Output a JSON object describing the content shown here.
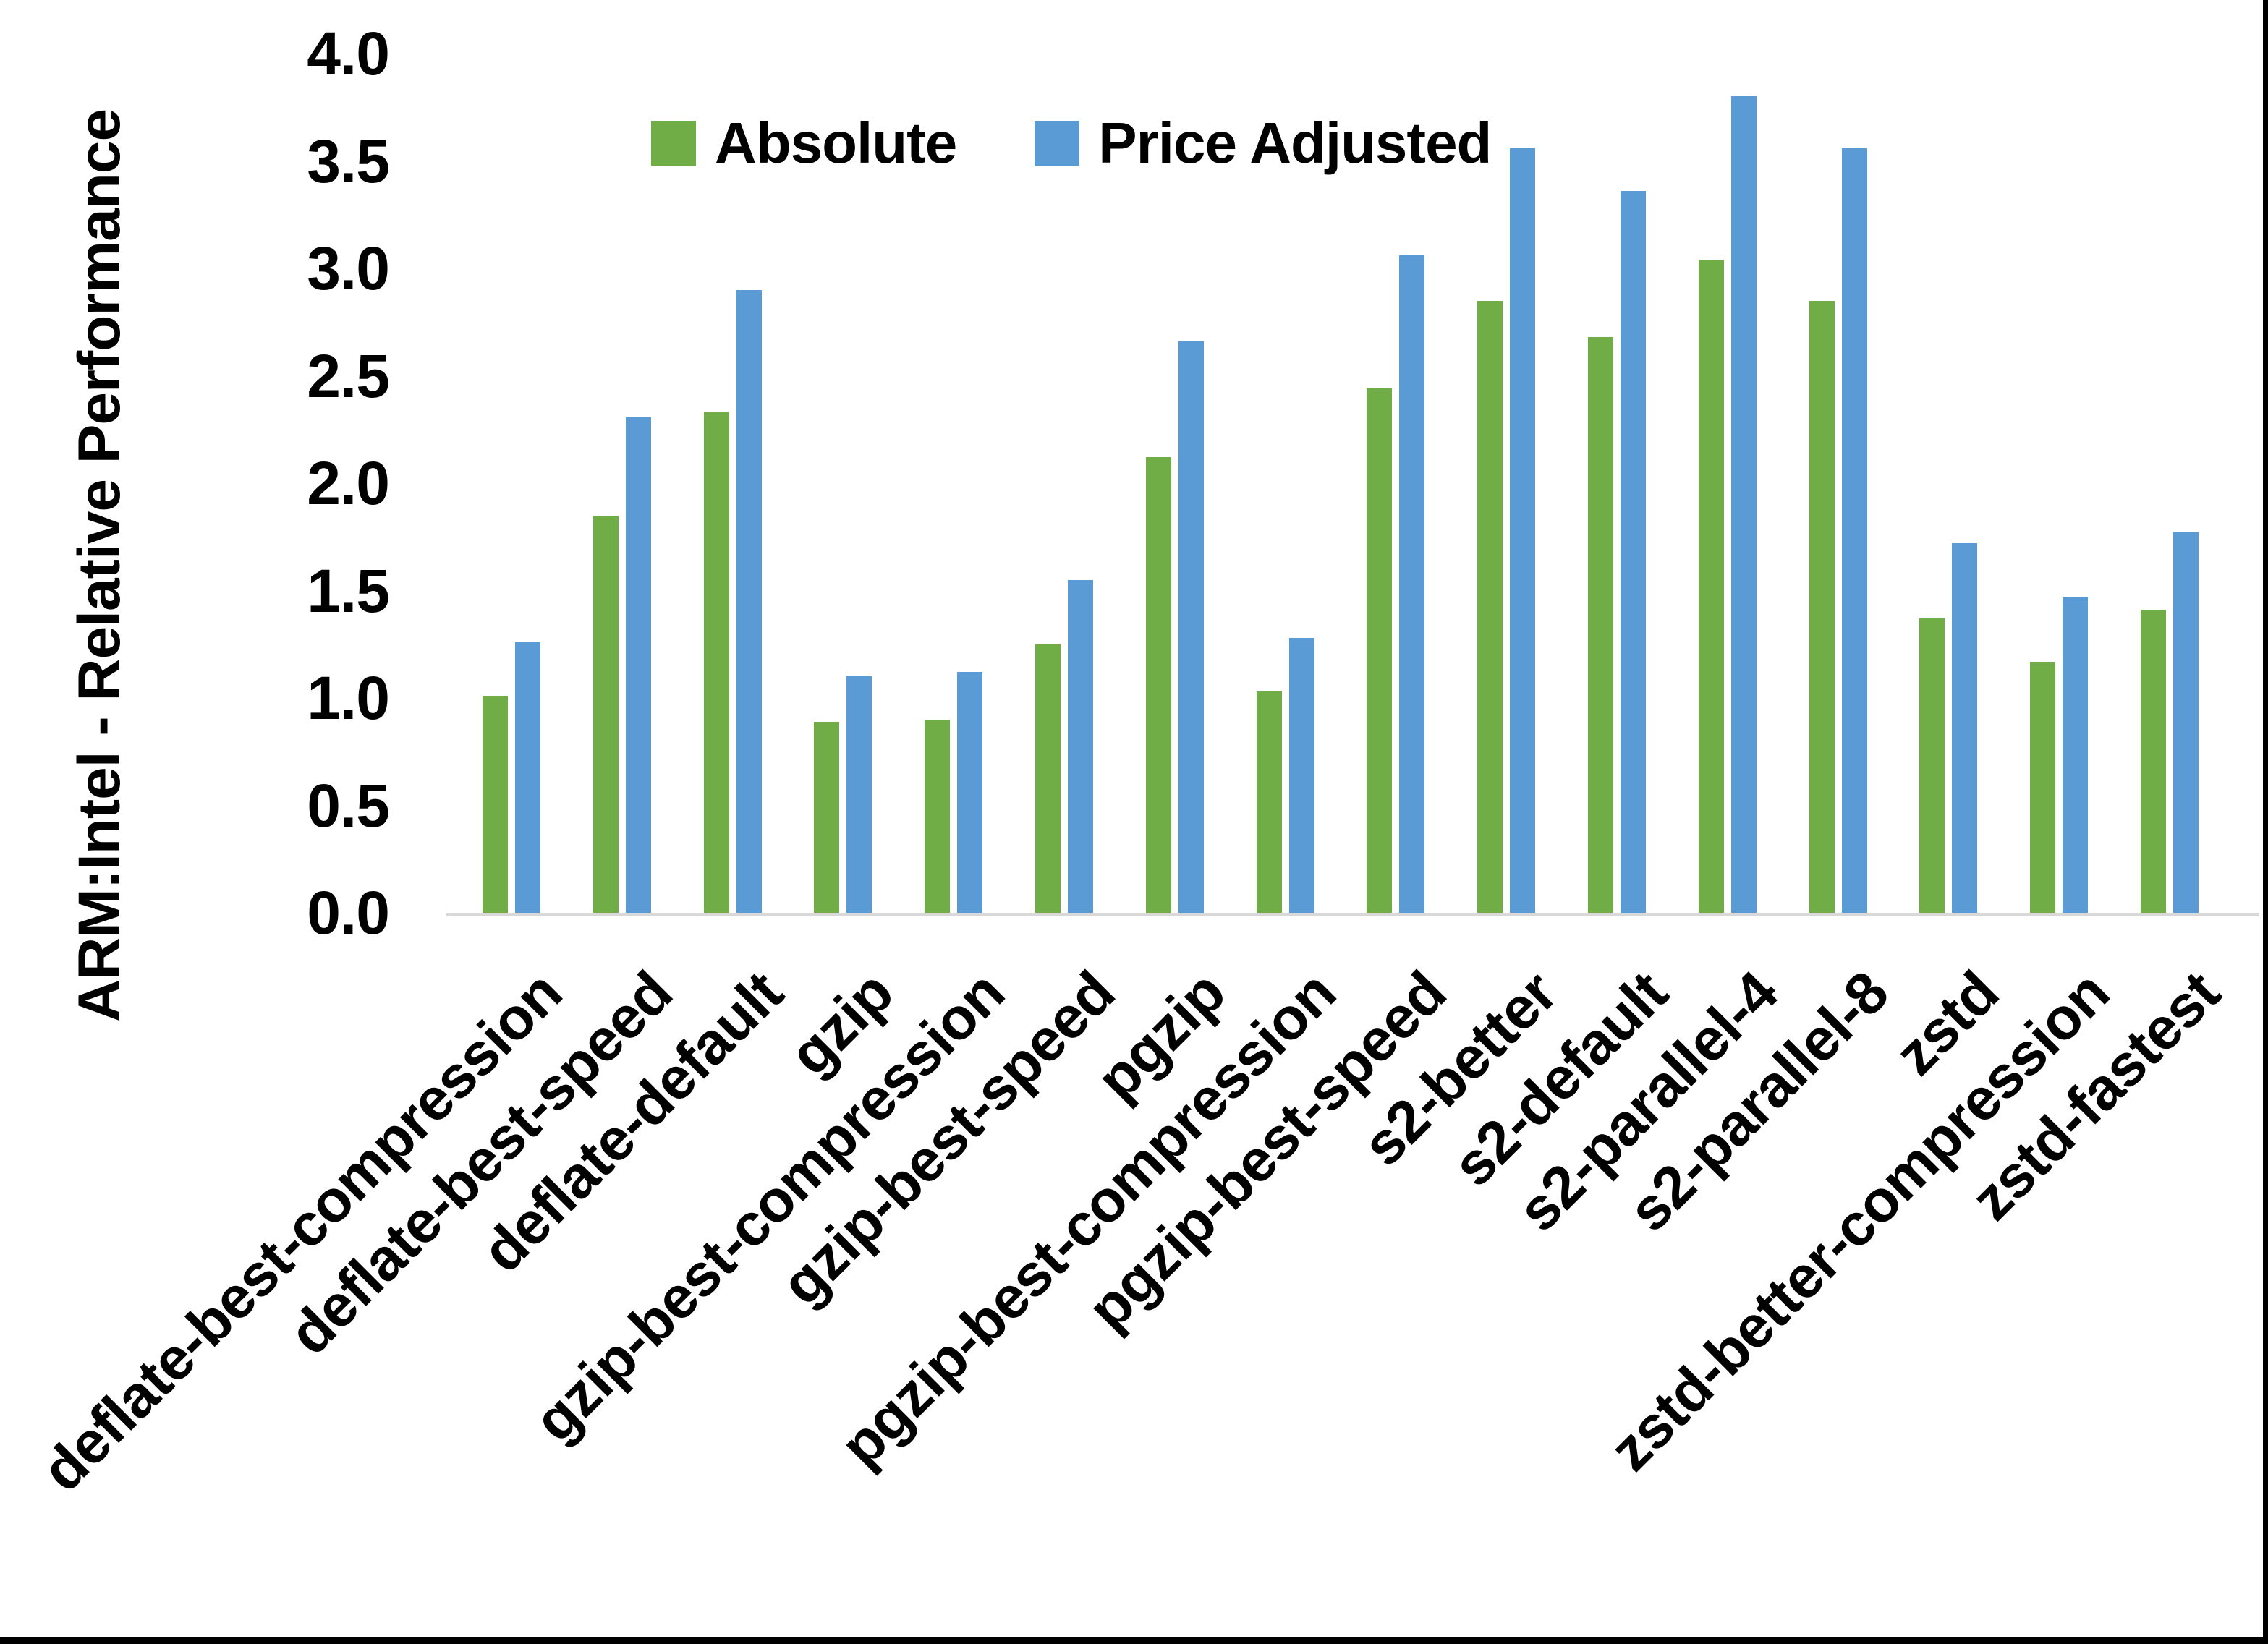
{
  "chart_data": {
    "type": "bar",
    "title": "",
    "ylabel": "ARM:Intel - Relative Performance",
    "xlabel": "",
    "ylim": [
      0.0,
      4.0
    ],
    "ytick_step": 0.5,
    "ytick_labels": [
      "0.0",
      "0.5",
      "1.0",
      "1.5",
      "2.0",
      "2.5",
      "3.0",
      "3.5",
      "4.0"
    ],
    "grid": false,
    "legend_position": "top-center",
    "axis_line_color": "#D9D9D9",
    "text_color": "#000000",
    "categories": [
      "deflate-best-compression",
      "deflate-best-speed",
      "deflate-default",
      "gzip",
      "gzip-best-compression",
      "gzip-best-speed",
      "pgzip",
      "pgzip-best-compression",
      "pgzip-best-speed",
      "s2-better",
      "s2-default",
      "s2-parallel-4",
      "s2-parallel-8",
      "zstd",
      "zstd-better-compression",
      "zstd-fastest"
    ],
    "series": [
      {
        "name": "Absolute",
        "color": "#70AD47",
        "values": [
          1.01,
          1.85,
          2.33,
          0.89,
          0.9,
          1.25,
          2.12,
          1.03,
          2.44,
          2.85,
          2.68,
          3.04,
          2.85,
          1.37,
          1.17,
          1.41
        ]
      },
      {
        "name": "Price Adjusted",
        "color": "#5B9BD5",
        "values": [
          1.26,
          2.31,
          2.9,
          1.1,
          1.12,
          1.55,
          2.66,
          1.28,
          3.06,
          3.56,
          3.36,
          3.8,
          3.56,
          1.72,
          1.47,
          1.77
        ]
      }
    ]
  }
}
